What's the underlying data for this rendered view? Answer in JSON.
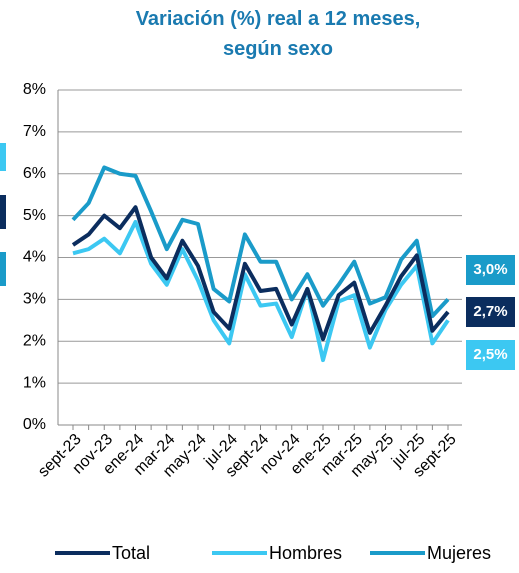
{
  "chart_data": {
    "type": "line",
    "title": "Variación (%) real a 12 meses, según sexo",
    "categories": [
      "sept-23",
      null,
      "nov-23",
      null,
      "ene-24",
      null,
      "mar-24",
      null,
      "may-24",
      null,
      "jul-24",
      null,
      "sept-24",
      null,
      "nov-24",
      null,
      "ene-25",
      null,
      "mar-25",
      null,
      "may-25",
      null,
      "jul-25",
      null,
      "sept-25"
    ],
    "series": [
      {
        "name": "Total",
        "color": "#0b2d5e",
        "values": [
          4.3,
          4.55,
          5.0,
          4.7,
          5.2,
          4.0,
          3.5,
          4.4,
          3.8,
          2.7,
          2.3,
          3.85,
          3.2,
          3.25,
          2.4,
          3.25,
          2.05,
          3.1,
          3.4,
          2.2,
          2.85,
          3.55,
          4.05,
          2.25,
          2.7
        ],
        "value_labels": [
          null,
          null,
          null,
          null,
          null,
          null,
          null,
          null,
          null,
          null,
          null,
          null,
          null,
          null,
          null,
          null,
          null,
          null,
          null,
          null,
          null,
          null,
          null,
          null,
          "2,7%"
        ]
      },
      {
        "name": "Hombres",
        "color": "#3cc8f2",
        "values": [
          4.1,
          4.2,
          4.45,
          4.1,
          4.85,
          3.85,
          3.35,
          4.2,
          3.45,
          2.5,
          1.95,
          3.6,
          2.85,
          2.9,
          2.1,
          3.25,
          1.55,
          2.95,
          3.1,
          1.85,
          2.75,
          3.35,
          3.8,
          1.95,
          2.5
        ],
        "value_labels": [
          null,
          null,
          null,
          null,
          null,
          null,
          null,
          null,
          null,
          null,
          null,
          null,
          null,
          null,
          null,
          null,
          null,
          null,
          null,
          null,
          null,
          null,
          null,
          null,
          "2,5%"
        ]
      },
      {
        "name": "Mujeres",
        "color": "#1a9bc9",
        "values": [
          4.9,
          5.3,
          6.15,
          6.0,
          5.95,
          5.1,
          4.2,
          4.9,
          4.8,
          3.25,
          2.95,
          4.55,
          3.9,
          3.9,
          3.0,
          3.6,
          2.85,
          3.35,
          3.9,
          2.9,
          3.05,
          3.95,
          4.4,
          2.6,
          3.0
        ],
        "value_labels": [
          null,
          null,
          null,
          null,
          null,
          null,
          null,
          null,
          null,
          null,
          null,
          null,
          null,
          null,
          null,
          null,
          null,
          null,
          null,
          null,
          null,
          null,
          null,
          null,
          "3,0%"
        ]
      }
    ],
    "ylim": [
      0,
      8
    ],
    "yticks": [
      {
        "value": 0,
        "label": "0%"
      },
      {
        "value": 1,
        "label": "1%"
      },
      {
        "value": 2,
        "label": "2%"
      },
      {
        "value": 3,
        "label": "3%"
      },
      {
        "value": 4,
        "label": "4%"
      },
      {
        "value": 5,
        "label": "5%"
      },
      {
        "value": 6,
        "label": "6%"
      },
      {
        "value": 7,
        "label": "7%"
      },
      {
        "value": 8,
        "label": "8%"
      }
    ],
    "grid": true,
    "legend": "bottom"
  }
}
